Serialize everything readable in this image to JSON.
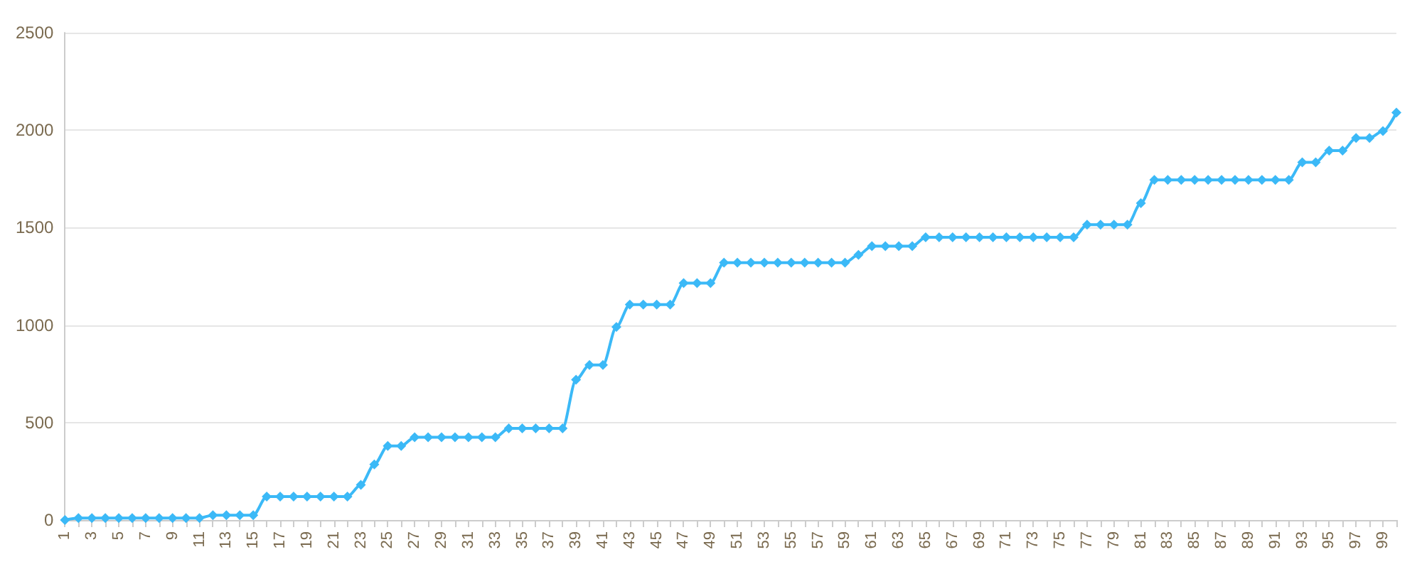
{
  "chart_data": {
    "type": "line",
    "categories": [
      "1",
      null,
      "3",
      null,
      "5",
      null,
      "7",
      null,
      "9",
      null,
      "11",
      null,
      "13",
      null,
      "15",
      null,
      "17",
      null,
      "19",
      null,
      "21",
      null,
      "23",
      null,
      "25",
      null,
      "27",
      null,
      "29",
      null,
      "31",
      null,
      "33",
      null,
      "35",
      null,
      "37",
      null,
      "39",
      null,
      "41",
      null,
      "43",
      null,
      "45",
      null,
      "47",
      null,
      "49",
      null,
      "51",
      null,
      "53",
      null,
      "55",
      null,
      "57",
      null,
      "59",
      null,
      "61",
      null,
      "63",
      null,
      "65",
      null,
      "67",
      null,
      "69",
      null,
      "71",
      null,
      "73",
      null,
      "75",
      null,
      "77",
      null,
      "79",
      null,
      "81",
      null,
      "83",
      null,
      "85",
      null,
      "87",
      null,
      "89",
      null,
      "91",
      null,
      "93",
      null,
      "95",
      null,
      "97",
      null,
      "99",
      null
    ],
    "series": [
      {
        "color": "#3bb9f7",
        "values": [
          0,
          10,
          10,
          10,
          10,
          10,
          10,
          10,
          10,
          10,
          10,
          25,
          25,
          25,
          25,
          120,
          120,
          120,
          120,
          120,
          120,
          120,
          180,
          285,
          380,
          380,
          425,
          425,
          425,
          425,
          425,
          425,
          425,
          470,
          470,
          470,
          470,
          470,
          720,
          795,
          795,
          990,
          1105,
          1105,
          1105,
          1105,
          1215,
          1215,
          1215,
          1320,
          1320,
          1320,
          1320,
          1320,
          1320,
          1320,
          1320,
          1320,
          1320,
          1360,
          1405,
          1405,
          1405,
          1405,
          1450,
          1450,
          1450,
          1450,
          1450,
          1450,
          1450,
          1450,
          1450,
          1450,
          1450,
          1450,
          1515,
          1515,
          1515,
          1515,
          1625,
          1745,
          1745,
          1745,
          1745,
          1745,
          1745,
          1745,
          1745,
          1745,
          1745,
          1745,
          1835,
          1835,
          1895,
          1895,
          1960,
          1960,
          1995,
          2090
        ]
      }
    ],
    "ylim": [
      0,
      2500
    ],
    "yticks": [
      0,
      500,
      1000,
      1500,
      2000,
      2500
    ],
    "grid": "y",
    "marker": "diamond",
    "line_style": "solid"
  }
}
